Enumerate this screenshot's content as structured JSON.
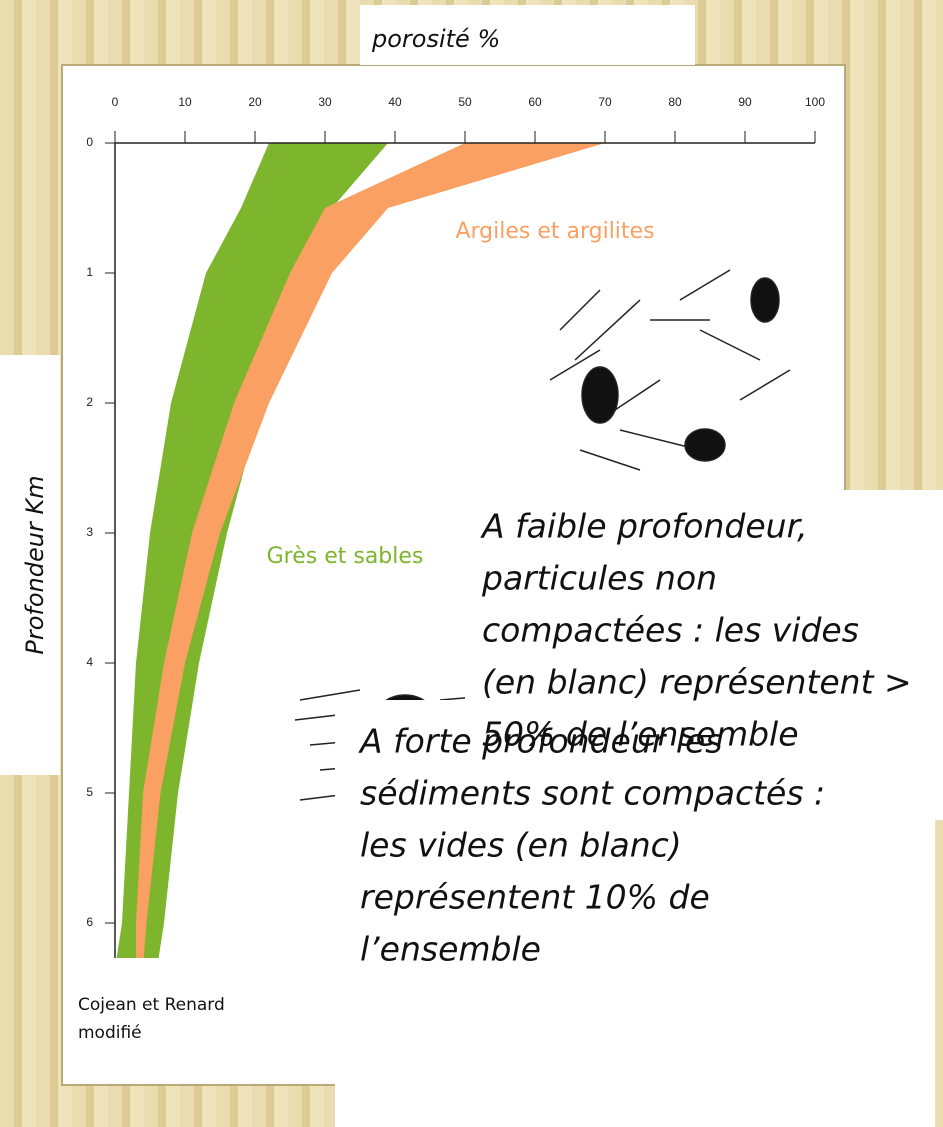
{
  "chart_data": {
    "type": "range-area",
    "xlabel": "porosité %",
    "ylabel": "Profondeur Km",
    "source": [
      "Cojean et Renard",
      "modifié"
    ],
    "annotations": [
      [
        "A faible profondeur,",
        "particules non",
        "compactées : les vides",
        "(en blanc) représentent >",
        "50% de l’ensemble"
      ],
      [
        "A forte profondeur les",
        "sédiments sont compactés :",
        "les vides (en blanc)",
        "représentent 10% de",
        "l’ensemble"
      ]
    ],
    "xlim": [
      0,
      100
    ],
    "xticks": [
      0,
      10,
      20,
      30,
      40,
      50,
      60,
      70,
      80,
      90,
      100
    ],
    "ylim": [
      0,
      6.4
    ],
    "yticks": [
      0,
      1,
      2,
      3,
      4,
      5,
      6
    ],
    "depths": [
      0,
      0.5,
      1,
      2,
      3,
      4,
      5,
      6,
      6.35
    ],
    "series": [
      {
        "name": "Grès et sables",
        "color": "#7db52c",
        "low": [
          22,
          18,
          13,
          8,
          5,
          3,
          2,
          1,
          0
        ],
        "high": [
          39,
          31,
          27,
          21,
          16,
          12,
          9,
          7,
          6
        ]
      },
      {
        "name": "Argiles et argilites",
        "color": "#f9a062",
        "low": [
          50,
          30,
          25,
          17,
          11,
          7,
          4,
          3,
          3
        ],
        "high": [
          70,
          39,
          31,
          22,
          15,
          10,
          6.5,
          4.5,
          4
        ]
      }
    ]
  }
}
